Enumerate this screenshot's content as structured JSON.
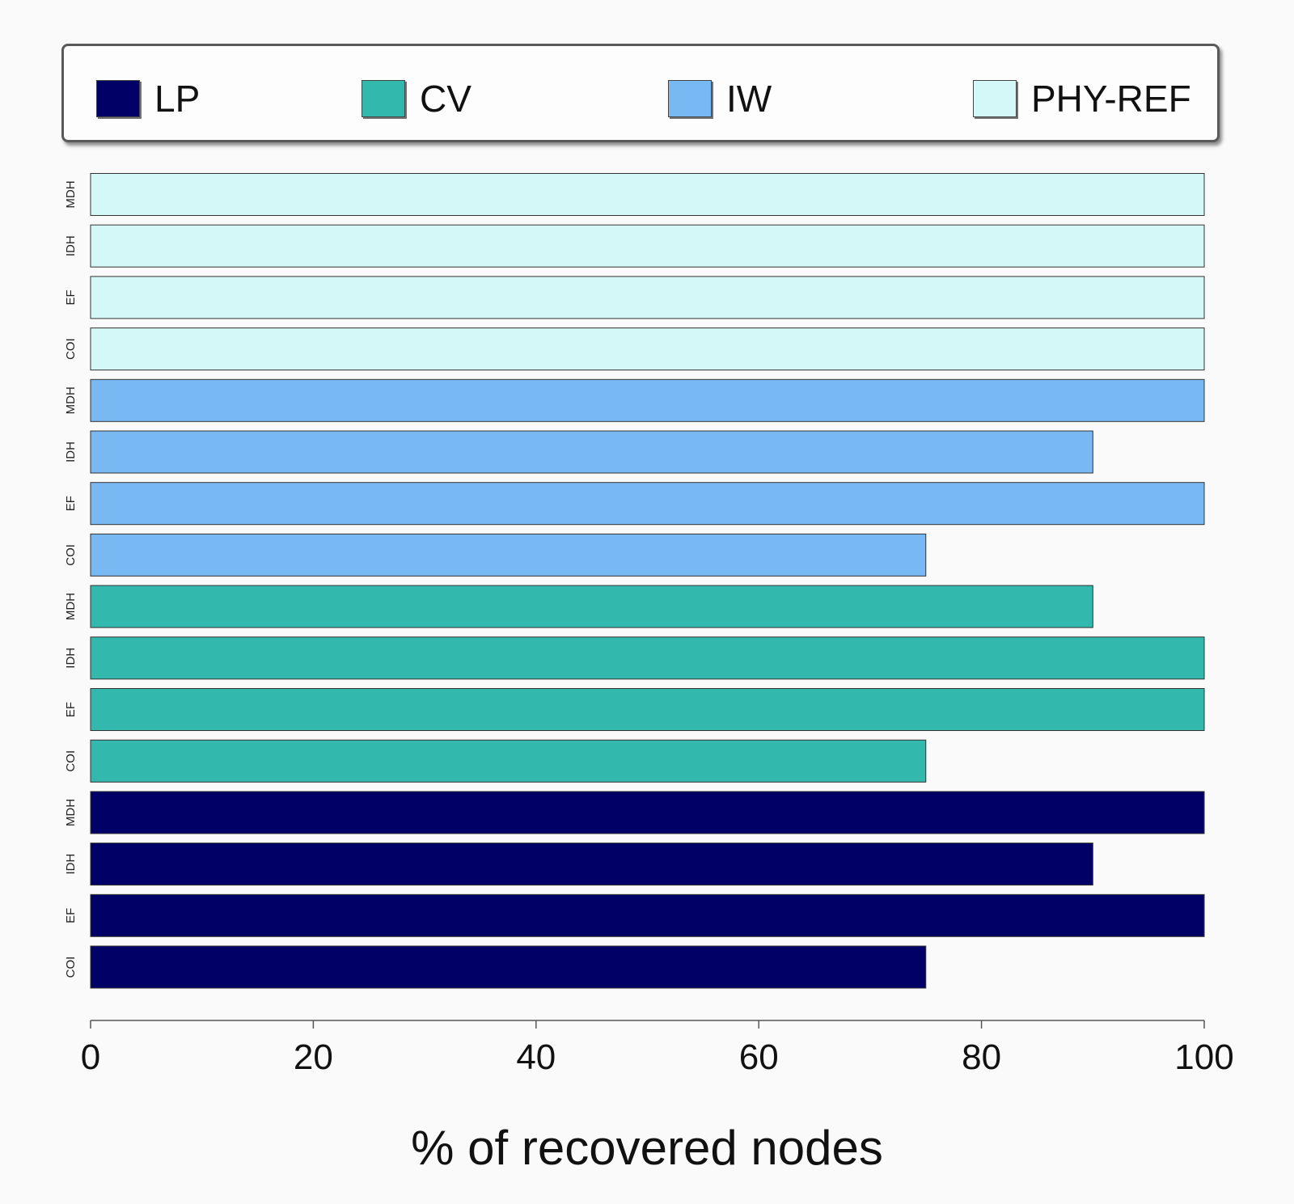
{
  "chart_data": {
    "type": "bar",
    "orientation": "horizontal",
    "xlabel": "% of recovered nodes",
    "xlim": [
      0,
      100
    ],
    "xticks": [
      0,
      20,
      40,
      60,
      80,
      100
    ],
    "tick_labels": [
      "0",
      "20",
      "40",
      "60",
      "80",
      "100"
    ],
    "legend_placement": "top",
    "categories": [
      "COI",
      "EF",
      "IDH",
      "MDH"
    ],
    "series": [
      {
        "name": "LP",
        "color": "#000066",
        "values": [
          75,
          100,
          90,
          100
        ]
      },
      {
        "name": "CV",
        "color": "#33b8ad",
        "values": [
          75,
          100,
          100,
          90
        ]
      },
      {
        "name": "IW",
        "color": "#78b8f3",
        "values": [
          75,
          100,
          90,
          100
        ]
      },
      {
        "name": "PHY-REF",
        "color": "#d4f7f7",
        "values": [
          100,
          100,
          100,
          100
        ]
      }
    ],
    "grid": false
  }
}
